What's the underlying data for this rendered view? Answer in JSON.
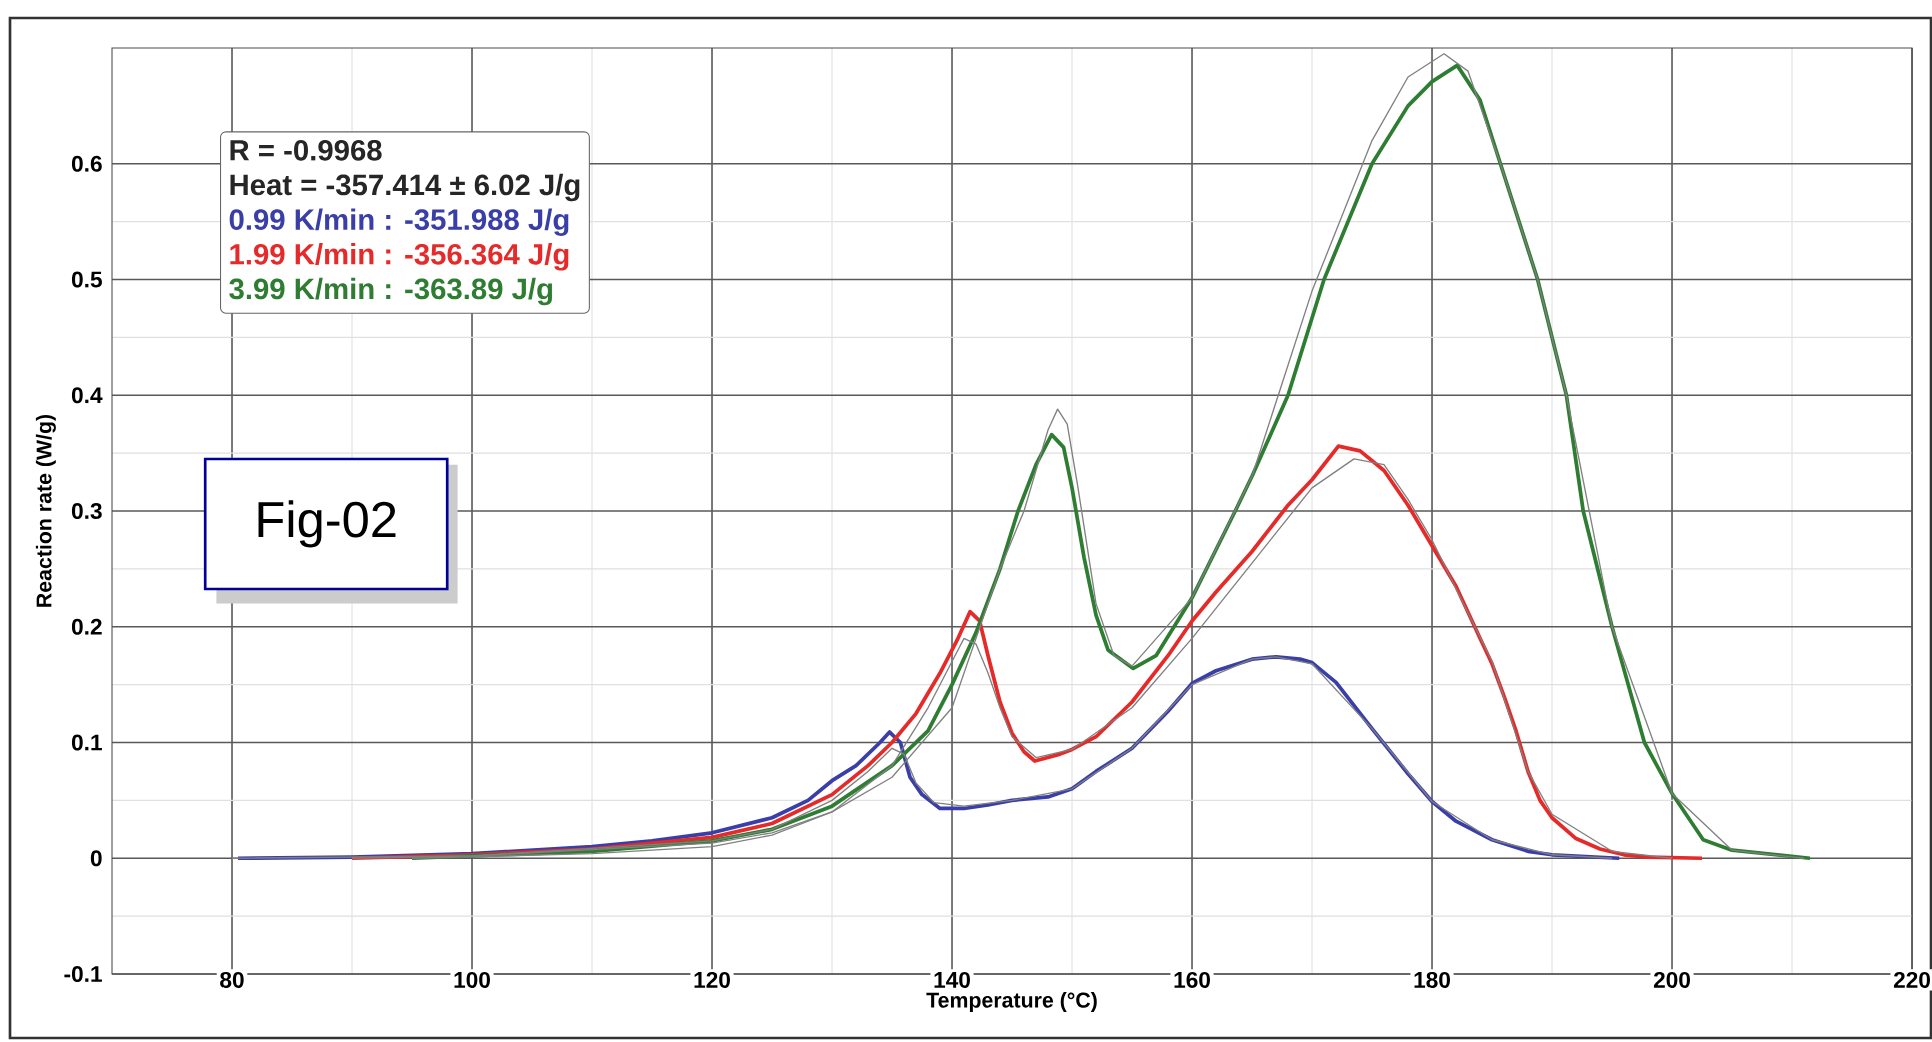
{
  "chart_data": {
    "type": "line",
    "xlabel": "Temperature (°C)",
    "ylabel": "Reaction rate (W/g)",
    "xlim": [
      70,
      220
    ],
    "xticks": [
      80,
      100,
      120,
      140,
      160,
      180,
      200,
      220
    ],
    "ylim": [
      -0.1,
      0.7
    ],
    "yticks": [
      -0.1,
      0,
      0.1,
      0.2,
      0.3,
      0.4,
      0.5,
      0.6
    ],
    "grid": true,
    "legend": "top left",
    "annotations": [
      "R = -0.9968",
      "Heat = -357.414 ± 6.02 J/g",
      "Fig-02"
    ],
    "series": [
      {
        "name": "0.99 K/min : -351.988 J/g",
        "color": "#3a3fa8",
        "x": [
          80.5,
          90,
          100,
          110,
          115,
          120,
          125,
          128,
          130,
          132,
          134,
          134.8,
          135.7,
          136.5,
          137.5,
          139,
          141,
          143,
          145,
          148,
          150,
          152,
          155,
          158,
          160,
          162,
          165,
          167,
          169,
          170,
          172,
          175,
          178,
          180,
          182,
          185,
          188,
          190,
          195.6
        ],
        "values": [
          0,
          0.001,
          0.004,
          0.01,
          0.015,
          0.022,
          0.035,
          0.05,
          0.067,
          0.08,
          0.1,
          0.109,
          0.1,
          0.07,
          0.055,
          0.043,
          0.043,
          0.046,
          0.05,
          0.053,
          0.06,
          0.075,
          0.095,
          0.127,
          0.151,
          0.162,
          0.172,
          0.174,
          0.172,
          0.169,
          0.152,
          0.112,
          0.073,
          0.049,
          0.032,
          0.016,
          0.006,
          0.003,
          0
        ]
      },
      {
        "name": "1.99 K/min : -356.364 J/g",
        "color": "#e52a2a",
        "x": [
          90,
          100,
          110,
          120,
          125,
          130,
          133,
          135,
          137,
          139,
          140.5,
          141.5,
          142.3,
          143,
          144,
          145,
          146,
          146.9,
          149,
          150,
          152,
          155,
          158,
          160,
          162,
          165,
          168,
          170,
          172.2,
          174,
          176,
          178,
          180,
          182,
          184,
          185,
          186,
          187,
          188,
          189,
          190,
          192,
          194,
          196,
          198,
          202.5
        ],
        "values": [
          0,
          0.003,
          0.008,
          0.018,
          0.03,
          0.055,
          0.08,
          0.1,
          0.125,
          0.16,
          0.19,
          0.213,
          0.205,
          0.175,
          0.135,
          0.108,
          0.092,
          0.084,
          0.09,
          0.094,
          0.105,
          0.135,
          0.175,
          0.205,
          0.23,
          0.265,
          0.305,
          0.327,
          0.356,
          0.352,
          0.335,
          0.305,
          0.27,
          0.235,
          0.19,
          0.168,
          0.14,
          0.11,
          0.075,
          0.05,
          0.035,
          0.017,
          0.008,
          0.003,
          0.001,
          0
        ]
      },
      {
        "name": "3.99 K/min : -363.89 J/g",
        "color": "#2e7d32",
        "x": [
          95,
          100,
          110,
          120,
          125,
          130,
          135,
          138,
          140,
          142,
          144,
          145.5,
          147,
          148.3,
          149.3,
          150,
          151,
          152,
          153,
          155.1,
          157,
          160,
          163.6,
          165,
          168,
          171,
          175,
          178,
          180,
          182.1,
          184,
          185.7,
          188.8,
          191.2,
          192.6,
          195,
          197.7,
          200,
          202.6,
          205,
          211.5
        ],
        "values": [
          0,
          0.002,
          0.006,
          0.015,
          0.025,
          0.045,
          0.08,
          0.11,
          0.15,
          0.195,
          0.25,
          0.3,
          0.34,
          0.366,
          0.355,
          0.32,
          0.26,
          0.21,
          0.18,
          0.164,
          0.175,
          0.225,
          0.3,
          0.33,
          0.4,
          0.5,
          0.6,
          0.65,
          0.671,
          0.685,
          0.655,
          0.6,
          0.5,
          0.4,
          0.3,
          0.2,
          0.1,
          0.056,
          0.016,
          0.007,
          0
        ]
      },
      {
        "color": "#808080",
        "x": [
          80,
          100,
          120,
          125,
          130,
          133,
          135,
          136,
          137,
          138.5,
          141,
          145,
          150,
          155,
          160,
          165,
          167,
          170,
          175,
          180,
          185,
          190,
          195
        ],
        "values": [
          0,
          0.002,
          0.015,
          0.025,
          0.05,
          0.075,
          0.095,
          0.09,
          0.065,
          0.048,
          0.045,
          0.05,
          0.06,
          0.095,
          0.15,
          0.172,
          0.174,
          0.168,
          0.112,
          0.049,
          0.016,
          0.003,
          0
        ]
      },
      {
        "color": "#808080",
        "x": [
          90,
          100,
          120,
          125,
          130,
          135,
          138,
          140,
          141,
          142,
          143,
          144,
          145,
          147,
          150,
          155,
          160,
          165,
          170,
          173.5,
          176,
          178,
          180,
          185,
          188,
          190,
          195,
          200
        ],
        "values": [
          0,
          0.002,
          0.013,
          0.022,
          0.04,
          0.08,
          0.13,
          0.17,
          0.19,
          0.185,
          0.16,
          0.13,
          0.105,
          0.087,
          0.094,
          0.13,
          0.19,
          0.255,
          0.32,
          0.345,
          0.34,
          0.31,
          0.275,
          0.17,
          0.075,
          0.038,
          0.006,
          0
        ]
      },
      {
        "color": "#808080",
        "x": [
          95,
          110,
          120,
          125,
          130,
          135,
          140,
          144,
          146,
          148,
          148.8,
          149.6,
          150.5,
          152,
          153.5,
          155,
          160,
          165,
          170,
          175,
          178,
          181,
          183,
          185.7,
          188.8,
          191.2,
          195,
          200,
          205,
          211
        ],
        "values": [
          0,
          0.004,
          0.01,
          0.02,
          0.04,
          0.07,
          0.13,
          0.25,
          0.3,
          0.37,
          0.388,
          0.375,
          0.32,
          0.22,
          0.175,
          0.166,
          0.225,
          0.33,
          0.49,
          0.62,
          0.675,
          0.695,
          0.68,
          0.6,
          0.5,
          0.4,
          0.2,
          0.056,
          0.007,
          0
        ]
      }
    ]
  }
}
